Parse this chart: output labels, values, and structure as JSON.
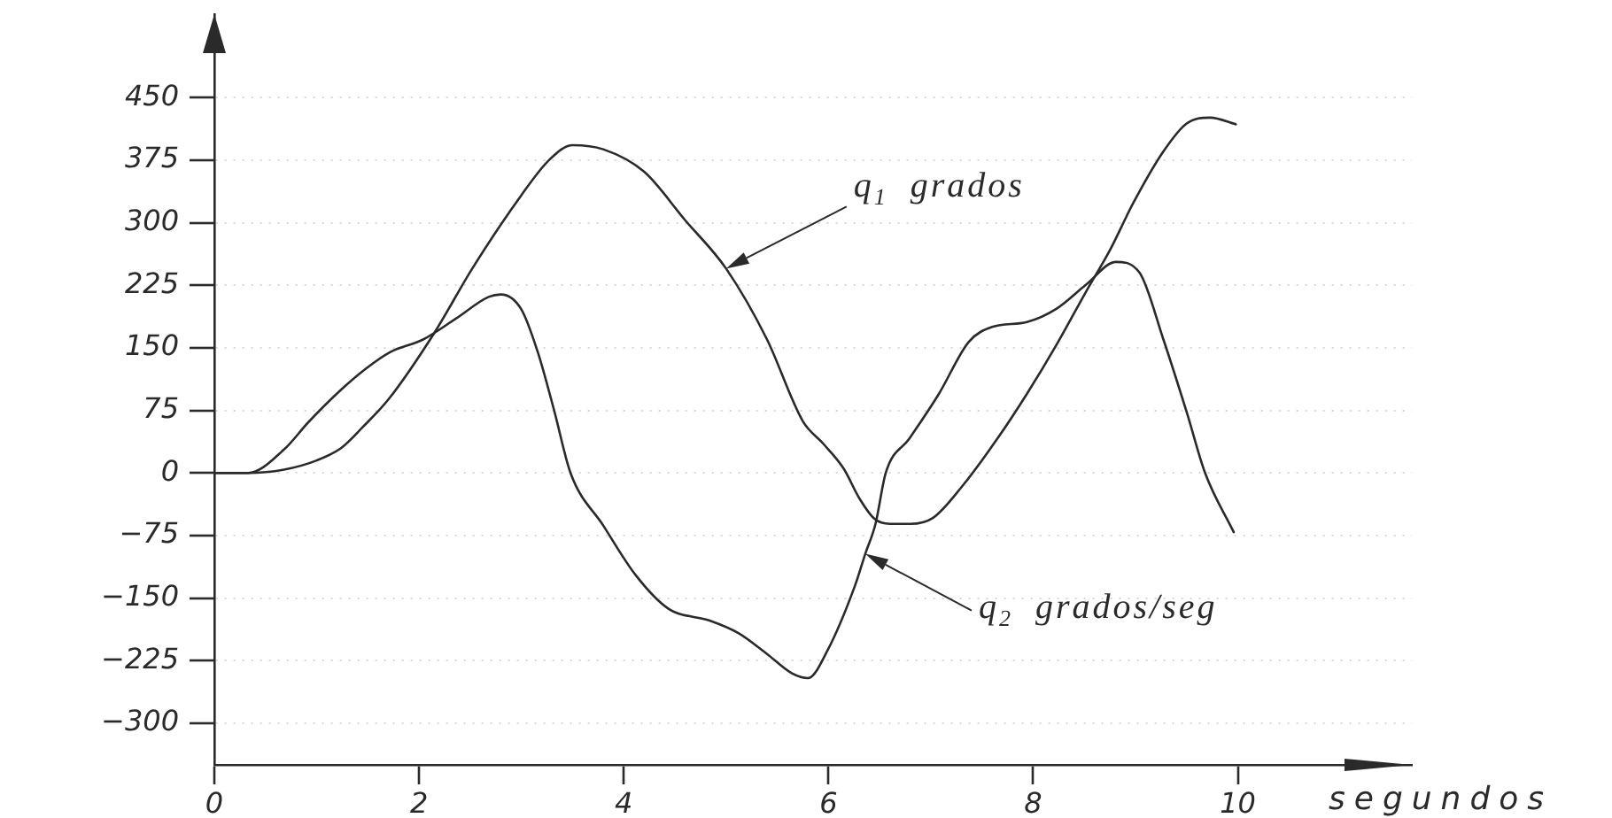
{
  "chart_data": {
    "type": "line",
    "xlabel": "segundos",
    "series": [
      {
        "name": "q$_{1}$ grados",
        "color": "#2a2a2a",
        "x": [
          0,
          0.33,
          0.68,
          1.0,
          1.24,
          1.45,
          1.7,
          2.15,
          2.52,
          3.0,
          3.27,
          3.5,
          3.8,
          4.2,
          4.6,
          5.0,
          5.4,
          5.75,
          5.95,
          6.15,
          6.3,
          6.45,
          6.6,
          6.8,
          7.02,
          7.3,
          7.65,
          7.94,
          8.23,
          8.52,
          8.75,
          8.98,
          9.27,
          9.5,
          9.73,
          9.98
        ],
        "values": [
          0,
          0,
          4,
          15,
          30,
          55,
          88,
          168,
          245,
          333,
          375,
          393,
          388,
          361,
          303,
          245,
          160,
          62,
          35,
          5,
          -30,
          -55,
          -61,
          -61,
          -54,
          -17,
          41,
          95,
          154,
          218,
          267,
          324,
          385,
          419,
          426,
          418
        ]
      },
      {
        "name": "q$_{2}$ grados/seg",
        "color": "#2a2a2a",
        "x": [
          0,
          0.33,
          0.68,
          0.92,
          1.24,
          1.48,
          1.72,
          2.04,
          2.36,
          2.68,
          2.8,
          3.0,
          3.16,
          3.32,
          3.48,
          3.8,
          4.12,
          4.44,
          4.84,
          5.12,
          5.4,
          5.64,
          5.8,
          5.99,
          6.26,
          6.36,
          6.46,
          6.56,
          6.79,
          7.08,
          7.37,
          7.6,
          7.94,
          8.23,
          8.52,
          8.81,
          9.04,
          9.27,
          9.5,
          9.68,
          9.96
        ],
        "values": [
          0,
          0,
          28,
          61,
          100,
          125,
          145,
          160,
          185,
          211,
          214,
          196,
          145,
          75,
          0,
          -63,
          -123,
          -163,
          -177,
          -192,
          -217,
          -240,
          -246,
          -213,
          -135,
          -97,
          -61,
          0,
          41,
          95,
          157,
          175,
          181,
          197,
          226,
          253,
          240,
          161,
          73,
          0,
          -71
        ]
      }
    ],
    "xlim": [
      0,
      11.7
    ],
    "ylim": [
      -350,
      550
    ],
    "xticks": [
      0,
      2,
      4,
      6,
      8,
      10
    ],
    "yticks": [
      -300,
      -225,
      -150,
      -75,
      0,
      75,
      150,
      225,
      300,
      375,
      450
    ],
    "grid": "y"
  }
}
